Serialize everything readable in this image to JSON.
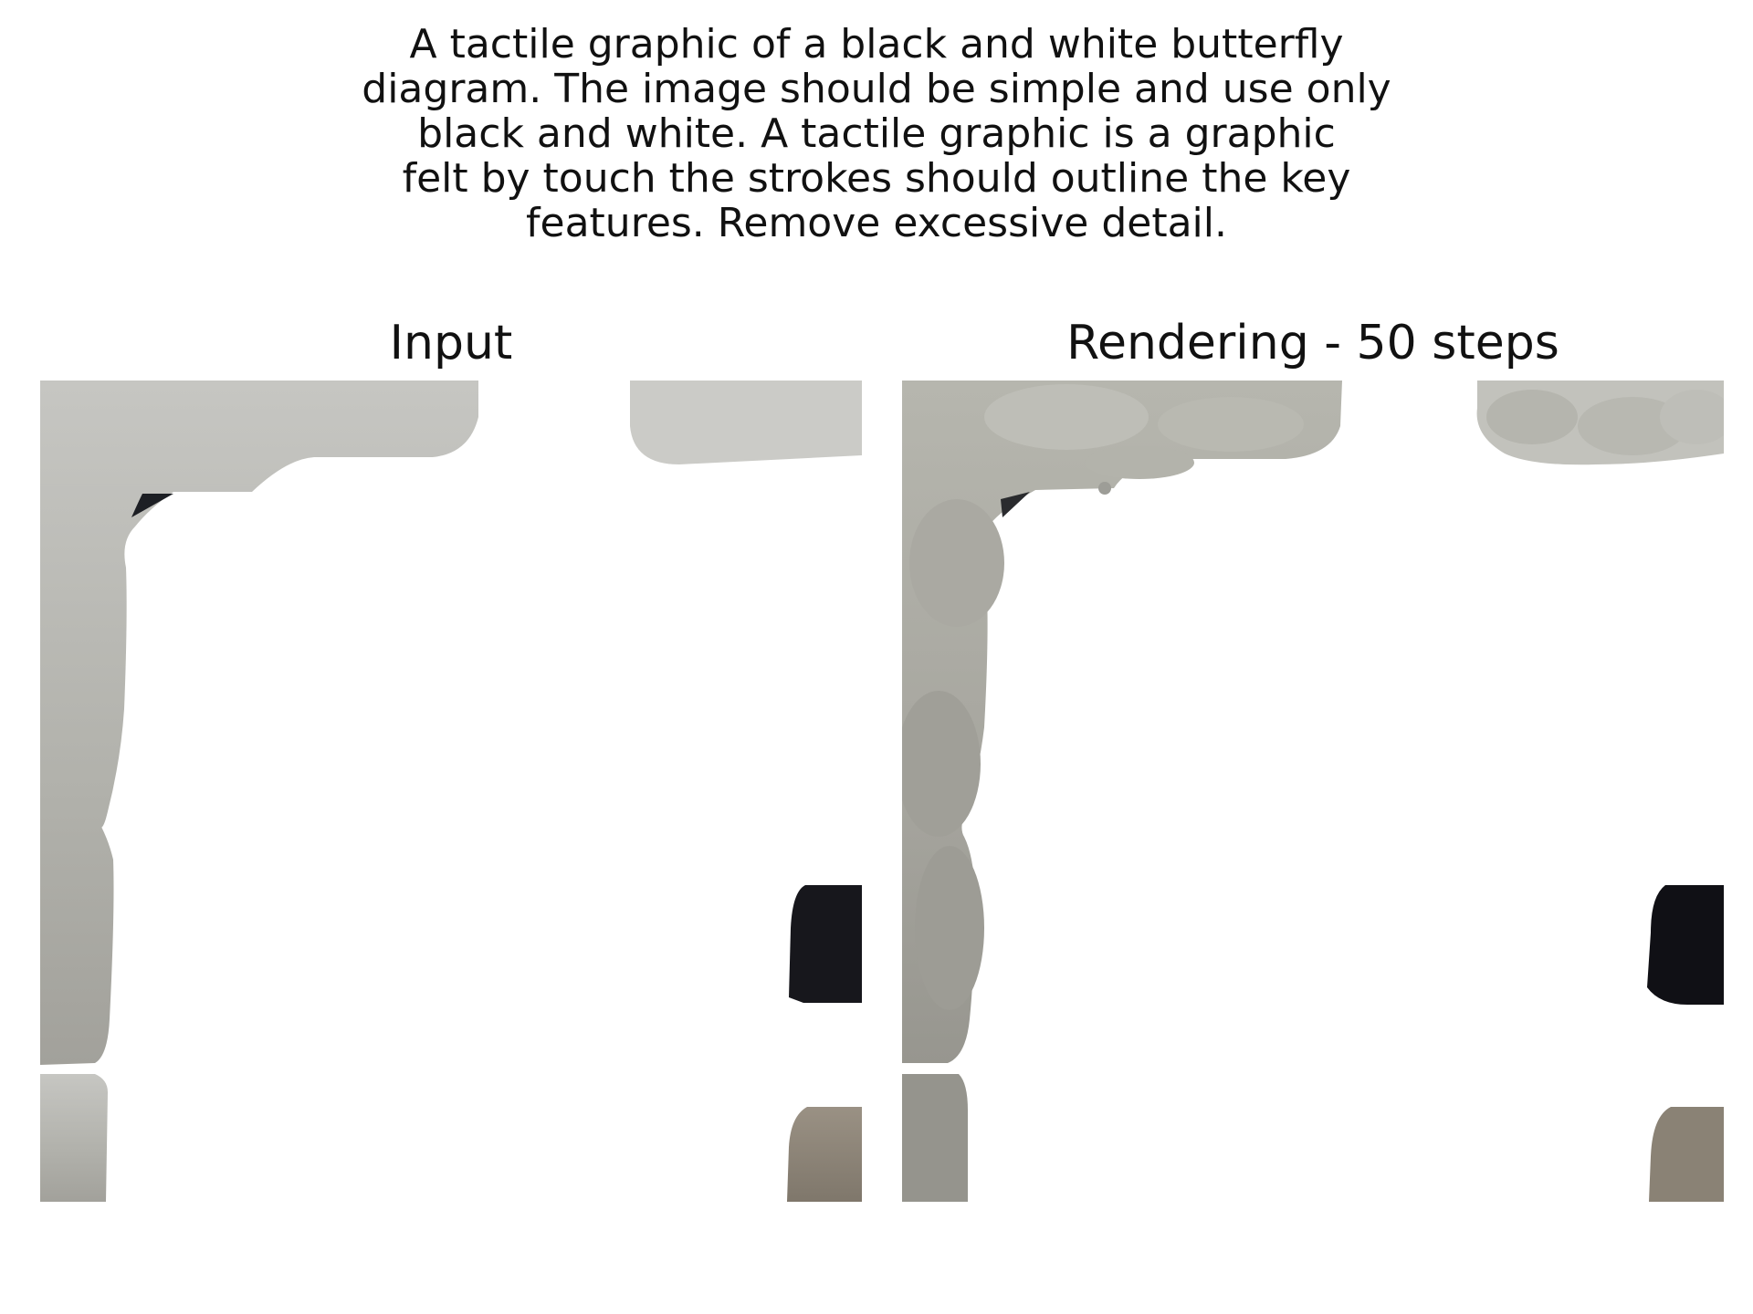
{
  "caption": {
    "lines": [
      "A tactile graphic of a black and white butterfly",
      "diagram. The image should be simple and use only",
      "black and white. A tactile graphic is a graphic",
      "felt by touch the strokes should outline the key",
      "features. Remove excessive detail."
    ]
  },
  "panels": [
    {
      "title": "Input",
      "style": "photo"
    },
    {
      "title": "Rendering - 50 steps",
      "style": "painted-strokes"
    }
  ],
  "colors": {
    "background": "#ffffff",
    "wall_gray": "#b8b8b2",
    "wall_light": "#cbcbc7",
    "dark_object": "#17171c",
    "brown_object": "#8c8378"
  }
}
